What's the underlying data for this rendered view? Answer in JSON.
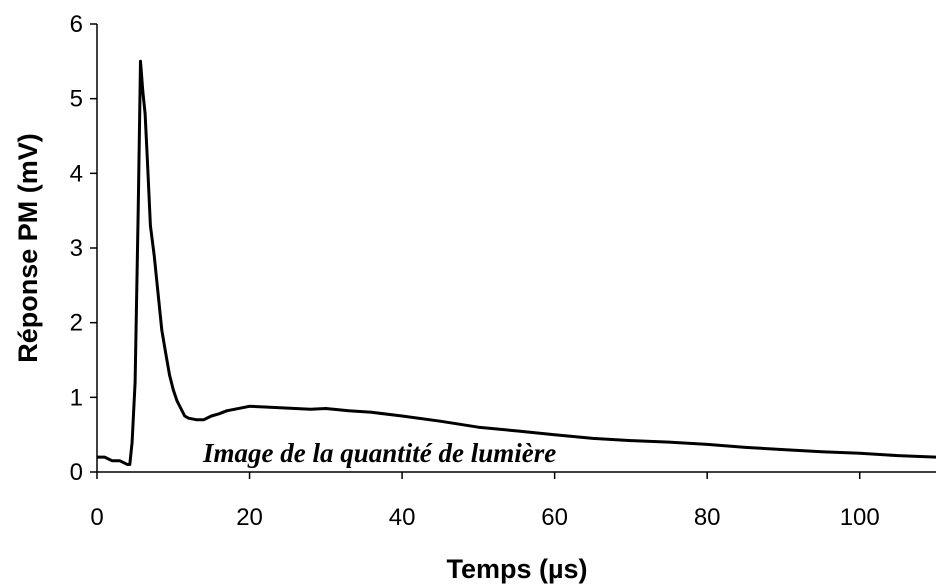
{
  "chart_data": {
    "type": "line",
    "title": "",
    "xlabel": "Temps (µs)",
    "ylabel": "Réponse PM (mV)",
    "xlim": [
      0,
      110
    ],
    "ylim": [
      0,
      6
    ],
    "x_ticks": [
      0,
      20,
      40,
      60,
      80,
      100
    ],
    "x_tick_labels": [
      "0",
      "20",
      "40",
      "60",
      "80",
      "100"
    ],
    "y_ticks": [
      0,
      1,
      2,
      3,
      4,
      5,
      6
    ],
    "y_tick_labels": [
      "0",
      "1",
      "2",
      "3",
      "4",
      "5",
      "6"
    ],
    "grid": false,
    "legend": "none",
    "annotation": "Image de la quantité de lumière",
    "series": [
      {
        "color": "#000000",
        "x": [
          0,
          1,
          2,
          3,
          4,
          4.3,
          4.6,
          5.0,
          5.4,
          5.7,
          6.0,
          6.3,
          6.6,
          7.0,
          7.5,
          8.0,
          8.5,
          9.0,
          9.5,
          10.0,
          10.5,
          11.0,
          11.5,
          12.0,
          13.0,
          14.0,
          15.0,
          16.0,
          17.0,
          18.0,
          19.0,
          20.0,
          22.0,
          24.0,
          26.0,
          28.0,
          30.0,
          33.0,
          36.0,
          40.0,
          45.0,
          50.0,
          55.0,
          60.0,
          65.0,
          70.0,
          75.0,
          80.0,
          85.0,
          90.0,
          95.0,
          100.0,
          105.0,
          110.0
        ],
        "y": [
          0.2,
          0.2,
          0.15,
          0.15,
          0.1,
          0.1,
          0.4,
          1.2,
          3.5,
          5.5,
          5.1,
          4.8,
          4.2,
          3.3,
          2.9,
          2.4,
          1.9,
          1.6,
          1.3,
          1.1,
          0.95,
          0.85,
          0.75,
          0.72,
          0.7,
          0.7,
          0.75,
          0.78,
          0.82,
          0.84,
          0.86,
          0.88,
          0.87,
          0.86,
          0.85,
          0.84,
          0.85,
          0.82,
          0.8,
          0.75,
          0.68,
          0.6,
          0.55,
          0.5,
          0.45,
          0.42,
          0.4,
          0.37,
          0.33,
          0.3,
          0.27,
          0.25,
          0.22,
          0.2
        ]
      }
    ]
  }
}
